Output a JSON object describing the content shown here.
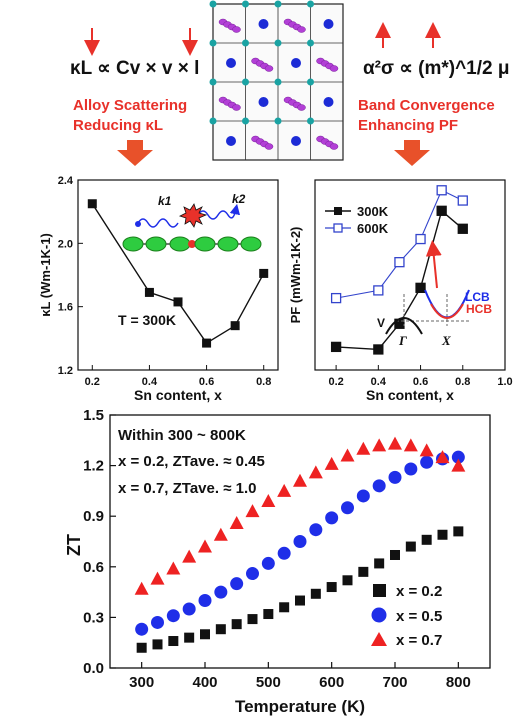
{
  "top": {
    "formula_left": "κL ∝ Cv × v × l",
    "formula_right": "α²σ ∝ (m*)^1/2 μ",
    "caption_left_line1": "Alloy Scattering",
    "caption_left_line2": "Reducing κL",
    "caption_right_line1": "Band Convergence",
    "caption_right_line2": "Enhancing PF",
    "colors": {
      "accent_red": "#e8312a",
      "arrow_orange": "#e8512a"
    }
  },
  "chart_data": [
    {
      "id": "kappa",
      "type": "line",
      "xlabel": "Sn content, x",
      "ylabel": "κL (Wm-1K-1)",
      "xlim": [
        0.15,
        0.85
      ],
      "ylim": [
        1.2,
        2.4
      ],
      "xticks": [
        "0.2",
        "0.4",
        "0.6",
        "0.8"
      ],
      "yticks": [
        "1.2",
        "1.6",
        "2.0",
        "2.4"
      ],
      "annotation": "T = 300K",
      "inset_labels": [
        "k1",
        "k2"
      ],
      "series": [
        {
          "x": [
            0.2,
            0.4,
            0.5,
            0.6,
            0.7,
            0.8
          ],
          "y": [
            2.25,
            1.69,
            1.63,
            1.37,
            1.48,
            1.81
          ],
          "marker": "filled-square",
          "color": "#111111"
        }
      ]
    },
    {
      "id": "pf",
      "type": "line",
      "xlabel": "Sn content, x",
      "ylabel": "PF (mWm-1K-2)",
      "xlim": [
        0.1,
        1.0
      ],
      "ylim": [
        1.2,
        4.9
      ],
      "xticks": [
        "0.2",
        "0.4",
        "0.6",
        "0.8",
        "1.0"
      ],
      "inset_labels": {
        "lcb": "LCB",
        "hcb": "HCB",
        "gamma": "Γ",
        "x": "X",
        "v": "V"
      },
      "series": [
        {
          "name": "300K",
          "x": [
            0.2,
            0.4,
            0.5,
            0.6,
            0.7,
            0.8
          ],
          "y": [
            1.65,
            1.6,
            2.1,
            2.8,
            4.3,
            3.95
          ],
          "marker": "filled-square",
          "color": "#111111"
        },
        {
          "name": "600K",
          "x": [
            0.2,
            0.4,
            0.5,
            0.6,
            0.7,
            0.8
          ],
          "y": [
            2.6,
            2.75,
            3.3,
            3.75,
            4.7,
            4.5
          ],
          "marker": "open-square",
          "color": "#3344cc"
        }
      ]
    },
    {
      "id": "zt",
      "type": "scatter",
      "xlabel": "Temperature (K)",
      "ylabel": "ZT",
      "xlim": [
        250,
        850
      ],
      "ylim": [
        0.0,
        1.5
      ],
      "xticks": [
        "300",
        "400",
        "500",
        "600",
        "700",
        "800"
      ],
      "yticks": [
        "0.0",
        "0.3",
        "0.6",
        "0.9",
        "1.2",
        "1.5"
      ],
      "notes": {
        "line1": "Within 300 ~ 800K",
        "line2": "x = 0.2, ZTave. ≈ 0.45",
        "line3": "x = 0.7, ZTave. ≈ 1.0"
      },
      "legend_position": "bottom-right",
      "series": [
        {
          "name": "x = 0.2",
          "marker": "square",
          "color": "#111111",
          "x": [
            300,
            325,
            350,
            375,
            400,
            425,
            450,
            475,
            500,
            525,
            550,
            575,
            600,
            625,
            650,
            675,
            700,
            725,
            750,
            775,
            800
          ],
          "y": [
            0.12,
            0.14,
            0.16,
            0.18,
            0.2,
            0.23,
            0.26,
            0.29,
            0.32,
            0.36,
            0.4,
            0.44,
            0.48,
            0.52,
            0.57,
            0.62,
            0.67,
            0.72,
            0.76,
            0.79,
            0.81
          ]
        },
        {
          "name": "x = 0.5",
          "marker": "circle",
          "color": "#1f2ee8",
          "x": [
            300,
            325,
            350,
            375,
            400,
            425,
            450,
            475,
            500,
            525,
            550,
            575,
            600,
            625,
            650,
            675,
            700,
            725,
            750,
            775,
            800
          ],
          "y": [
            0.23,
            0.27,
            0.31,
            0.35,
            0.4,
            0.45,
            0.5,
            0.56,
            0.62,
            0.68,
            0.75,
            0.82,
            0.89,
            0.95,
            1.02,
            1.08,
            1.13,
            1.18,
            1.22,
            1.24,
            1.25
          ]
        },
        {
          "name": "x = 0.7",
          "marker": "triangle",
          "color": "#ee2222",
          "x": [
            300,
            325,
            350,
            375,
            400,
            425,
            450,
            475,
            500,
            525,
            550,
            575,
            600,
            625,
            650,
            675,
            700,
            725,
            750,
            775,
            800
          ],
          "y": [
            0.47,
            0.53,
            0.59,
            0.66,
            0.72,
            0.79,
            0.86,
            0.93,
            0.99,
            1.05,
            1.11,
            1.16,
            1.21,
            1.26,
            1.3,
            1.32,
            1.33,
            1.32,
            1.29,
            1.25,
            1.2
          ]
        }
      ]
    }
  ]
}
